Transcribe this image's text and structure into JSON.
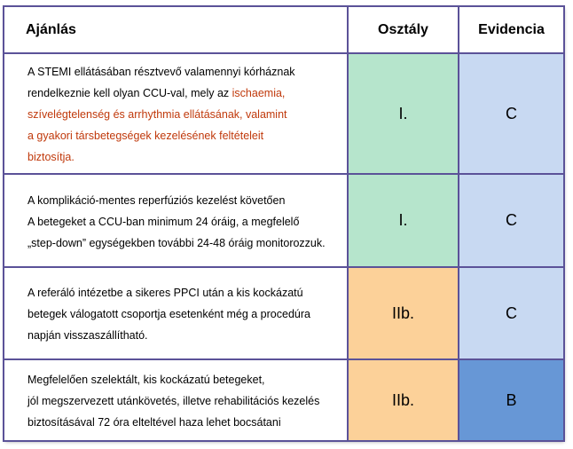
{
  "header": {
    "recommendation": "Ajánlás",
    "class": "Osztály",
    "evidence": "Evidencia"
  },
  "rows": [
    {
      "lines": [
        {
          "text": "A STEMI ellátásában résztvevő valamennyi kórháznak",
          "rest": ""
        },
        {
          "text": "rendelkeznie kell olyan CCU-val, mely az ",
          "rest": "ischaemia,"
        },
        {
          "text": "",
          "rest": "szívelégtelenség és arrhythmia ellátásának, valamint"
        },
        {
          "text": "",
          "rest": "a gyakori társbetegségek kezelésének feltételeit"
        },
        {
          "text": "",
          "rest": "biztosítja."
        }
      ],
      "class": "I.",
      "evidence": "C",
      "class_color": "#b6e5cc",
      "evidence_color": "#c8d9f2"
    },
    {
      "lines": [
        {
          "text": "A komplikáció-mentes reperfúziós kezelést követően",
          "rest": ""
        },
        {
          "text": "A betegeket a  CCU-ban minimum 24 óráig, a megfelelő",
          "rest": ""
        },
        {
          "text": "„step-down” egységekben további 24-48 óráig monitorozzuk.",
          "rest": ""
        }
      ],
      "class": "I.",
      "evidence": "C",
      "class_color": "#b6e5cc",
      "evidence_color": "#c8d9f2"
    },
    {
      "lines": [
        {
          "text": "A referáló intézetbe a sikeres PPCI után a kis kockázatú",
          "rest": ""
        },
        {
          "text": "betegek válogatott csoportja esetenként még a procedúra",
          "rest": ""
        },
        {
          "text": "napján visszaszállítható.",
          "rest": ""
        }
      ],
      "class": "IIb.",
      "evidence": "C",
      "class_color": "#fcd199",
      "evidence_color": "#c8d9f2"
    },
    {
      "lines": [
        {
          "text": "Megfelelően szelektált, kis kockázatú betegeket,",
          "rest": ""
        },
        {
          "text": "jól megszervezett utánkövetés, illetve rehabilitációs kezelés",
          "rest": ""
        },
        {
          "text": "biztosításával 72 óra elteltével haza lehet bocsátani",
          "rest": ""
        }
      ],
      "class": "IIb.",
      "evidence": "B",
      "class_color": "#fcd199",
      "evidence_color": "#6797d6"
    }
  ]
}
